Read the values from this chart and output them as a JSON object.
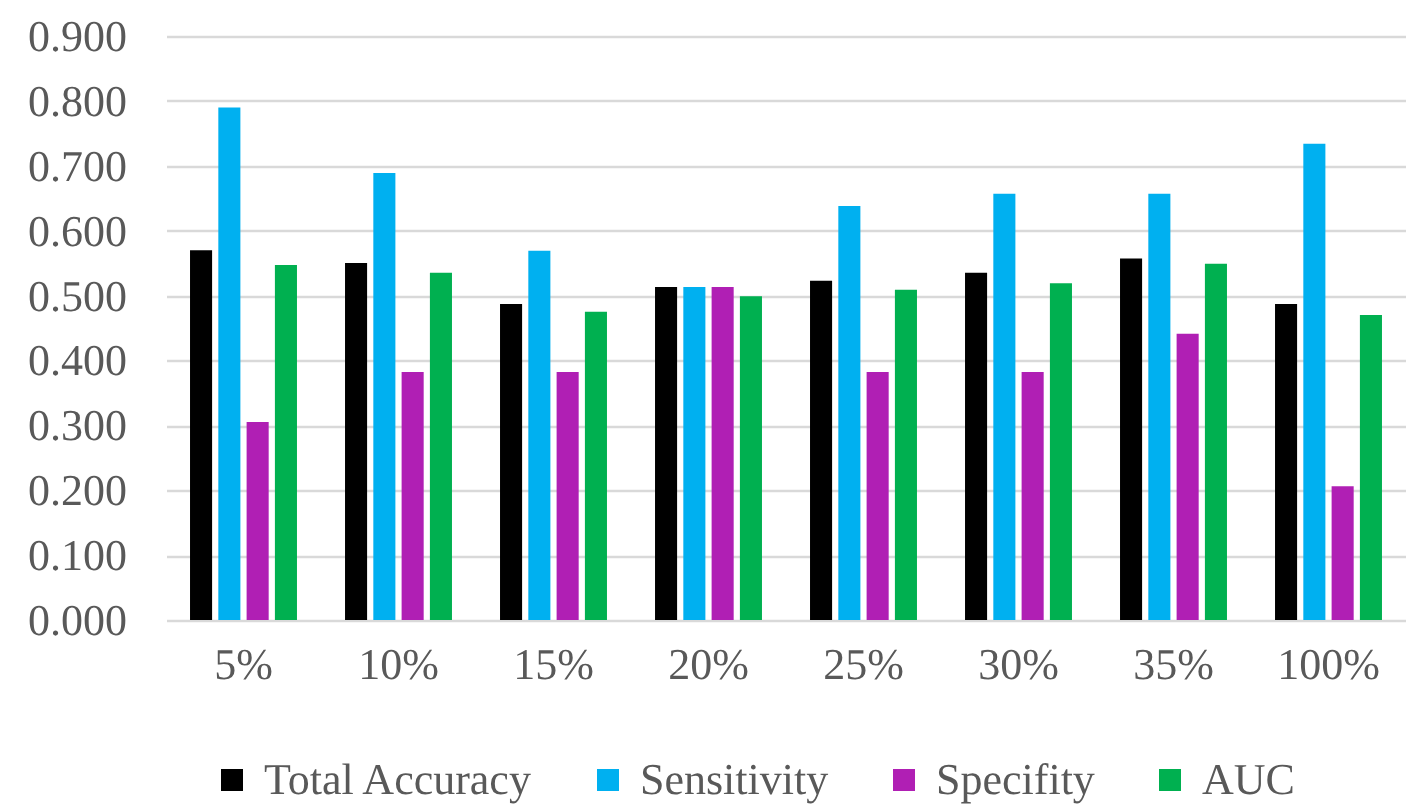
{
  "chart_data": {
    "type": "bar",
    "categories": [
      "5%",
      "10%",
      "15%",
      "20%",
      "25%",
      "30%",
      "35%",
      "100%"
    ],
    "series": [
      {
        "name": "Total Accuracy",
        "color": "#000000",
        "values": [
          0.57,
          0.55,
          0.487,
          0.513,
          0.523,
          0.535,
          0.557,
          0.487
        ]
      },
      {
        "name": "Sensitivity",
        "color": "#00b0f0",
        "values": [
          0.79,
          0.689,
          0.569,
          0.513,
          0.638,
          0.657,
          0.657,
          0.734
        ]
      },
      {
        "name": "Specifity",
        "color": "#b01fb4",
        "values": [
          0.305,
          0.382,
          0.382,
          0.513,
          0.382,
          0.382,
          0.441,
          0.206
        ]
      },
      {
        "name": "AUC",
        "color": "#00b050",
        "values": [
          0.547,
          0.535,
          0.475,
          0.499,
          0.509,
          0.519,
          0.549,
          0.47
        ]
      }
    ],
    "ylim": [
      0,
      0.9
    ],
    "yticks": [
      {
        "value": 0,
        "label": "0.000"
      },
      {
        "value": 0.1,
        "label": "0.100"
      },
      {
        "value": 0.2,
        "label": "0.200"
      },
      {
        "value": 0.3,
        "label": "0.300"
      },
      {
        "value": 0.4,
        "label": "0.400"
      },
      {
        "value": 0.5,
        "label": "0.500"
      },
      {
        "value": 0.6,
        "label": "0.600"
      },
      {
        "value": 0.7,
        "label": "0.700"
      },
      {
        "value": 0.8,
        "label": "0.800"
      },
      {
        "value": 0.9,
        "label": "0.900"
      }
    ],
    "grid": "y",
    "legend": "bottom"
  }
}
